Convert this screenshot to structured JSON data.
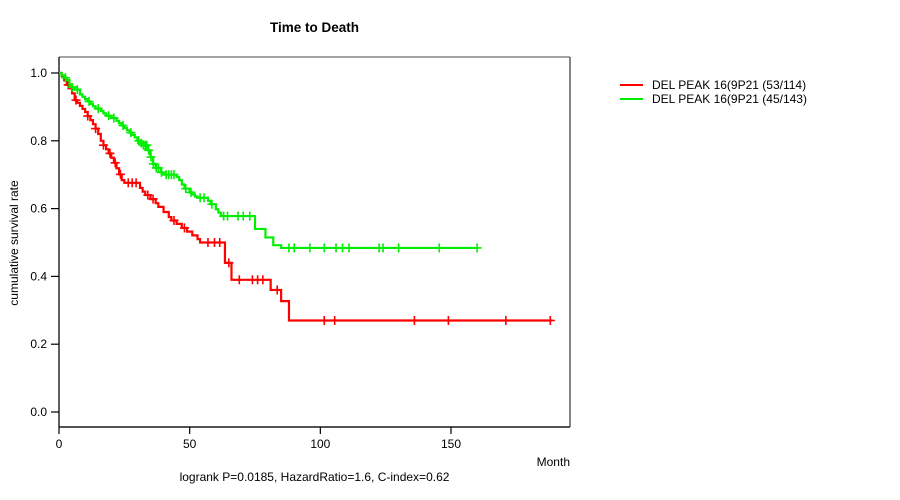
{
  "title": "Time to Death",
  "chart_data": {
    "type": "line",
    "subtype": "kaplan-meier-step",
    "title": "Time to Death",
    "xlabel": "Month",
    "ylabel": "cumulative survival rate",
    "xlim": [
      0,
      195
    ],
    "ylim": [
      0.0,
      1.0
    ],
    "xticks": [
      0,
      50,
      100,
      150
    ],
    "yticks": [
      1.0,
      0.8,
      0.6,
      0.4,
      0.2,
      0.0
    ],
    "grid": false,
    "legend_position": "right-outside",
    "annotation": "logrank P=0.0185, HazardRatio=1.6, C-index=0.62",
    "series": [
      {
        "name": "DEL PEAK 16(9P21 (53/114)",
        "color": "#ff0000",
        "deaths": 53,
        "total": 114,
        "points": [
          [
            0,
            1.0
          ],
          [
            1,
            0.991
          ],
          [
            2,
            0.978
          ],
          [
            3,
            0.965
          ],
          [
            4,
            0.955
          ],
          [
            5,
            0.94
          ],
          [
            6,
            0.92
          ],
          [
            7,
            0.912
          ],
          [
            8,
            0.903
          ],
          [
            9,
            0.894
          ],
          [
            10,
            0.885
          ],
          [
            11,
            0.873
          ],
          [
            12,
            0.861
          ],
          [
            13,
            0.849
          ],
          [
            14,
            0.836
          ],
          [
            15,
            0.82
          ],
          [
            16,
            0.8
          ],
          [
            17,
            0.787
          ],
          [
            18,
            0.775
          ],
          [
            19,
            0.763
          ],
          [
            20,
            0.75
          ],
          [
            21,
            0.735
          ],
          [
            22,
            0.719
          ],
          [
            23,
            0.701
          ],
          [
            24,
            0.684
          ],
          [
            25,
            0.676
          ],
          [
            31,
            0.661
          ],
          [
            32,
            0.65
          ],
          [
            33,
            0.64
          ],
          [
            35,
            0.628
          ],
          [
            37,
            0.616
          ],
          [
            38,
            0.605
          ],
          [
            40,
            0.59
          ],
          [
            42,
            0.575
          ],
          [
            43,
            0.565
          ],
          [
            45,
            0.555
          ],
          [
            47,
            0.543
          ],
          [
            49,
            0.532
          ],
          [
            51,
            0.521
          ],
          [
            53,
            0.51
          ],
          [
            54,
            0.5
          ],
          [
            63.5,
            0.44
          ],
          [
            66,
            0.39
          ],
          [
            81,
            0.36
          ],
          [
            85,
            0.327
          ],
          [
            88,
            0.27
          ]
        ],
        "censor_times": [
          3.5,
          6.5,
          11,
          14,
          17,
          19.5,
          21.5,
          23.5,
          26.5,
          28,
          29.5,
          34,
          36,
          44,
          48,
          57,
          59.5,
          61.5,
          65,
          69,
          74,
          76,
          78,
          83.5,
          101.5,
          105.5,
          136,
          149,
          171,
          188
        ],
        "end_time": 188.5
      },
      {
        "name": "DEL PEAK 16(9P21 (45/143)",
        "color": "#00ee00",
        "deaths": 45,
        "total": 143,
        "points": [
          [
            0,
            1.0
          ],
          [
            1,
            0.993
          ],
          [
            2,
            0.986
          ],
          [
            3,
            0.979
          ],
          [
            4,
            0.965
          ],
          [
            5,
            0.958
          ],
          [
            6,
            0.951
          ],
          [
            8,
            0.937
          ],
          [
            9,
            0.93
          ],
          [
            10,
            0.923
          ],
          [
            11,
            0.916
          ],
          [
            12,
            0.909
          ],
          [
            13,
            0.902
          ],
          [
            14,
            0.895
          ],
          [
            16,
            0.888
          ],
          [
            17,
            0.881
          ],
          [
            18,
            0.874
          ],
          [
            20,
            0.867
          ],
          [
            22,
            0.859
          ],
          [
            23,
            0.852
          ],
          [
            24,
            0.845
          ],
          [
            25,
            0.838
          ],
          [
            26,
            0.831
          ],
          [
            27,
            0.824
          ],
          [
            28,
            0.817
          ],
          [
            29,
            0.81
          ],
          [
            30,
            0.8
          ],
          [
            31,
            0.793
          ],
          [
            32,
            0.787
          ],
          [
            34,
            0.772
          ],
          [
            35,
            0.752
          ],
          [
            36,
            0.732
          ],
          [
            37,
            0.72
          ],
          [
            39,
            0.707
          ],
          [
            40,
            0.7
          ],
          [
            45,
            0.693
          ],
          [
            46,
            0.684
          ],
          [
            47,
            0.671
          ],
          [
            48,
            0.659
          ],
          [
            50,
            0.648
          ],
          [
            51,
            0.642
          ],
          [
            52,
            0.636
          ],
          [
            53,
            0.632
          ],
          [
            57,
            0.623
          ],
          [
            58,
            0.613
          ],
          [
            60,
            0.598
          ],
          [
            61,
            0.588
          ],
          [
            62,
            0.578
          ],
          [
            75,
            0.54
          ],
          [
            79,
            0.515
          ],
          [
            82,
            0.492
          ],
          [
            85,
            0.484
          ]
        ],
        "censor_times": [
          2.5,
          5,
          7,
          11.5,
          15,
          19,
          21,
          24.5,
          27.5,
          30.5,
          31.5,
          32.3,
          33,
          33.6,
          34.3,
          35.2,
          36.1,
          37.2,
          38,
          39.2,
          41,
          42,
          43,
          44,
          48.5,
          50.5,
          54,
          55.5,
          58.5,
          63,
          64.5,
          68.5,
          70.5,
          73,
          88,
          90,
          96,
          101.5,
          106,
          108.5,
          111,
          122.5,
          124,
          130,
          145.5,
          160
        ],
        "end_time": 160
      }
    ]
  }
}
